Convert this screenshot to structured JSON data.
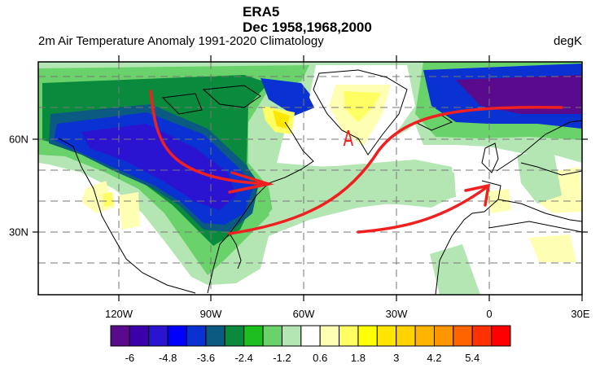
{
  "header": {
    "title": "ERA5",
    "subtitle": "Dec 1958,1968,2000",
    "left_string": "2m Air Temperature Anomaly  1991-2020 Climatology",
    "units": "degK"
  },
  "map": {
    "region": "North Atlantic / North America / Europe",
    "lat_labels": [
      "60N",
      "30N"
    ],
    "lon_labels": [
      "120W",
      "90W",
      "60W",
      "30W",
      "0",
      "30E"
    ],
    "annotation": "A",
    "annotation_color": "#f02020",
    "overlay_arrows": [
      "cold flow from Arctic Canada to US Northeast",
      "Gulf of Mexico to Norway",
      "subtropical Atlantic to Iberia"
    ]
  },
  "colorbar": {
    "labels": [
      "-6",
      "-4.8",
      "-3.6",
      "-2.4",
      "-1.2",
      "0.6",
      "1.8",
      "3",
      "4.2",
      "5.4"
    ],
    "colors": [
      "#5a0a8c",
      "#3c00aa",
      "#2a14d2",
      "#0000ff",
      "#0a32d2",
      "#0a5a82",
      "#0a8a3c",
      "#1ebe1e",
      "#6ad26a",
      "#b4e6b4",
      "#ffffff",
      "#ffffb4",
      "#ffff64",
      "#ffff00",
      "#ffe600",
      "#ffd200",
      "#ffb400",
      "#ff9600",
      "#ff6400",
      "#ff3200",
      "#ff0000"
    ]
  }
}
